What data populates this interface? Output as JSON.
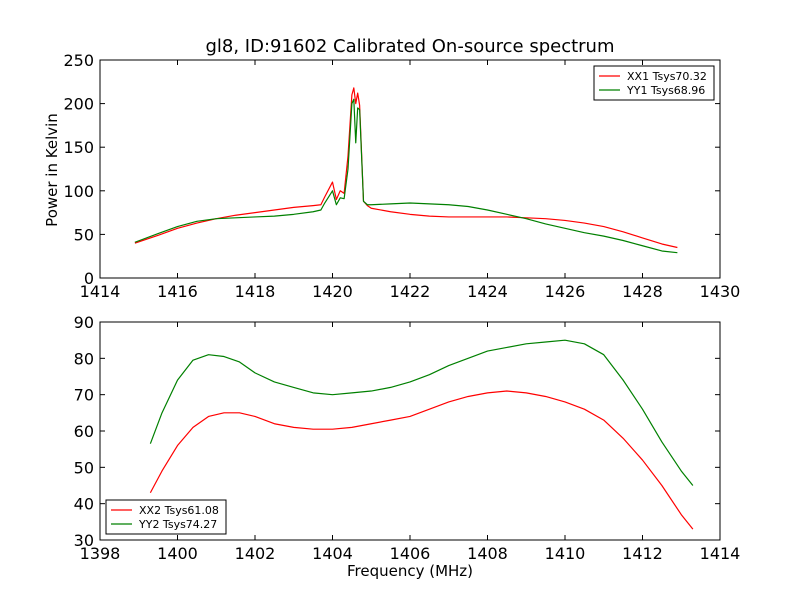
{
  "chart_data": [
    {
      "type": "line",
      "title": "gl8, ID:91602 Calibrated On-source spectrum",
      "xlabel": "",
      "ylabel": "Power in Kelvin",
      "xlim": [
        1414,
        1430
      ],
      "ylim": [
        0,
        250
      ],
      "xticks": [
        "1414",
        "1416",
        "1418",
        "1420",
        "1422",
        "1424",
        "1426",
        "1428",
        "1430"
      ],
      "yticks": [
        "0",
        "50",
        "100",
        "150",
        "200",
        "250"
      ],
      "legend": "top-right",
      "series": [
        {
          "name": "XX1 Tsys70.32",
          "color": "#ff0000",
          "x": [
            1414.9,
            1415.5,
            1416,
            1416.5,
            1417,
            1417.5,
            1418,
            1418.5,
            1419,
            1419.5,
            1419.7,
            1419.8,
            1420,
            1420.1,
            1420.2,
            1420.3,
            1420.4,
            1420.5,
            1420.55,
            1420.6,
            1420.65,
            1420.7,
            1420.8,
            1420.9,
            1421,
            1421.5,
            1422,
            1422.5,
            1423,
            1423.5,
            1424,
            1424.5,
            1425,
            1425.5,
            1426,
            1426.5,
            1427,
            1427.5,
            1428,
            1428.5,
            1428.9
          ],
          "y": [
            40,
            49,
            57,
            63,
            68,
            72,
            75,
            78,
            81,
            83,
            84,
            93,
            110,
            90,
            100,
            97,
            140,
            210,
            218,
            200,
            212,
            198,
            88,
            83,
            80,
            76,
            73,
            71,
            70,
            70,
            70,
            70,
            69,
            68,
            66,
            63,
            59,
            53,
            46,
            39,
            35
          ]
        },
        {
          "name": "YY1 Tsys68.96",
          "color": "#008000",
          "x": [
            1414.9,
            1415.5,
            1416,
            1416.5,
            1417,
            1417.5,
            1418,
            1418.5,
            1419,
            1419.5,
            1419.7,
            1419.8,
            1420,
            1420.1,
            1420.2,
            1420.3,
            1420.4,
            1420.5,
            1420.55,
            1420.6,
            1420.65,
            1420.7,
            1420.8,
            1420.9,
            1421,
            1421.5,
            1422,
            1422.5,
            1423,
            1423.5,
            1424,
            1424.5,
            1425,
            1425.5,
            1426,
            1426.5,
            1427,
            1427.5,
            1428,
            1428.5,
            1428.9
          ],
          "y": [
            41,
            51,
            59,
            65,
            68,
            69,
            70,
            71,
            73,
            76,
            78,
            86,
            100,
            84,
            92,
            91,
            125,
            200,
            205,
            155,
            195,
            193,
            88,
            84,
            84,
            85,
            86,
            85,
            84,
            82,
            78,
            73,
            68,
            62,
            57,
            52,
            48,
            43,
            37,
            31,
            29
          ]
        }
      ]
    },
    {
      "type": "line",
      "title": "",
      "xlabel": "Frequency (MHz)",
      "ylabel": "",
      "xlim": [
        1398,
        1414
      ],
      "ylim": [
        30,
        90
      ],
      "xticks": [
        "1398",
        "1400",
        "1402",
        "1404",
        "1406",
        "1408",
        "1410",
        "1412",
        "1414"
      ],
      "yticks": [
        "30",
        "40",
        "50",
        "60",
        "70",
        "80",
        "90"
      ],
      "legend": "bottom-left",
      "series": [
        {
          "name": "XX2 Tsys61.08",
          "color": "#ff0000",
          "x": [
            1399.3,
            1399.6,
            1400,
            1400.4,
            1400.8,
            1401.2,
            1401.6,
            1402,
            1402.5,
            1403,
            1403.5,
            1404,
            1404.5,
            1405,
            1405.5,
            1406,
            1406.5,
            1407,
            1407.5,
            1408,
            1408.5,
            1409,
            1409.5,
            1410,
            1410.5,
            1411,
            1411.5,
            1412,
            1412.5,
            1413,
            1413.3
          ],
          "y": [
            43,
            49,
            56,
            61,
            64,
            65,
            65,
            64,
            62,
            61,
            60.5,
            60.5,
            61,
            62,
            63,
            64,
            66,
            68,
            69.5,
            70.5,
            71,
            70.5,
            69.5,
            68,
            66,
            63,
            58,
            52,
            45,
            37,
            33
          ]
        },
        {
          "name": "YY2 Tsys74.27",
          "color": "#008000",
          "x": [
            1399.3,
            1399.6,
            1400,
            1400.4,
            1400.8,
            1401.2,
            1401.6,
            1402,
            1402.5,
            1403,
            1403.5,
            1404,
            1404.5,
            1405,
            1405.5,
            1406,
            1406.5,
            1407,
            1407.5,
            1408,
            1408.5,
            1409,
            1409.5,
            1410,
            1410.5,
            1411,
            1411.5,
            1412,
            1412.5,
            1413,
            1413.3
          ],
          "y": [
            56.5,
            65,
            74,
            79.5,
            81,
            80.5,
            79,
            76,
            73.5,
            72,
            70.5,
            70,
            70.5,
            71,
            72,
            73.5,
            75.5,
            78,
            80,
            82,
            83,
            84,
            84.5,
            85,
            84,
            81,
            74,
            66,
            57,
            49,
            45
          ]
        }
      ]
    }
  ]
}
